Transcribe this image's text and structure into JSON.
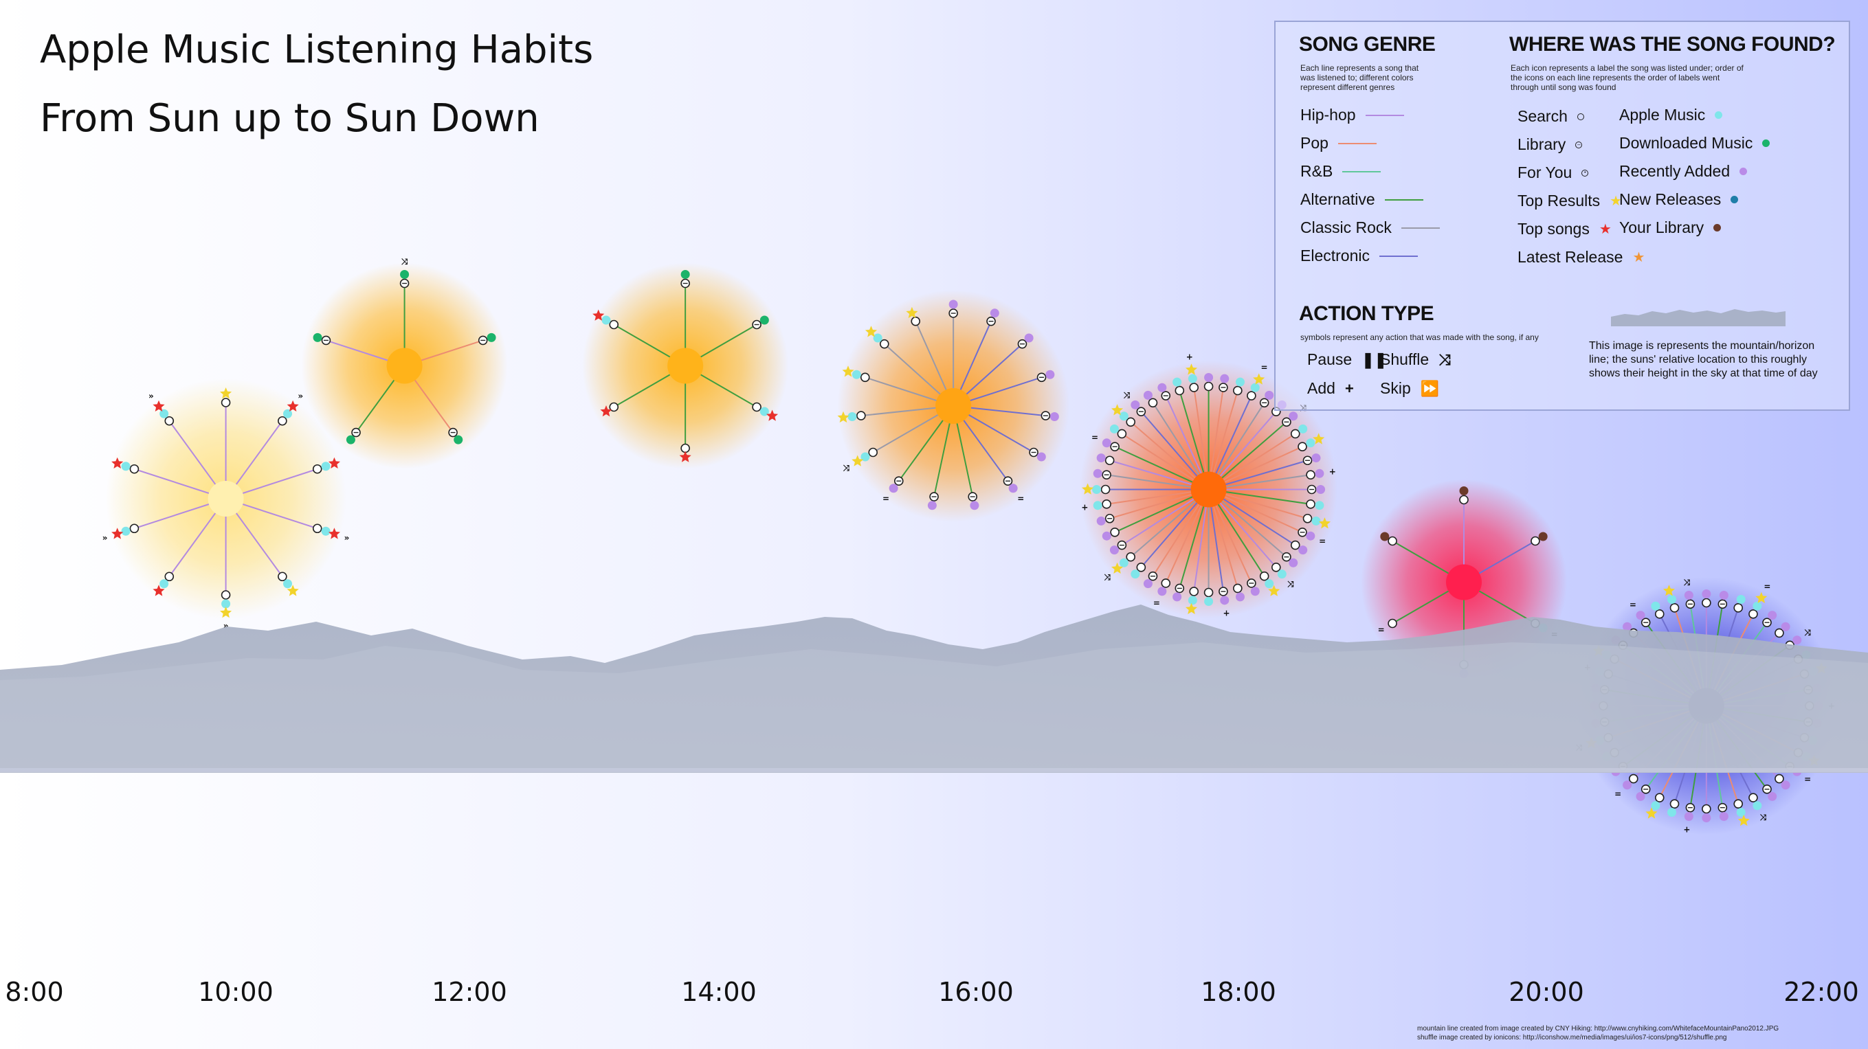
{
  "title": {
    "line1": "Apple Music Listening Habits",
    "line2": "From Sun up to Sun Down"
  },
  "legend": {
    "genre": {
      "heading": "SONG GENRE",
      "description": [
        "Each line represents a song that",
        "was listened to; different colors",
        "represent different genres"
      ],
      "items": [
        {
          "label": "Hip-hop",
          "color": "#b38ae0"
        },
        {
          "label": "Pop",
          "color": "#ec8c72"
        },
        {
          "label": "R&B",
          "color": "#5fc79a"
        },
        {
          "label": "Alternative",
          "color": "#3f9e3f"
        },
        {
          "label": "Classic Rock",
          "color": "#9a9aa8"
        },
        {
          "label": "Electronic",
          "color": "#6f6fd0"
        }
      ]
    },
    "found": {
      "heading": "WHERE WAS THE SONG FOUND?",
      "description": [
        "Each icon represents a label the song was listed under; order of",
        "the icons on each line represents the order of labels went",
        "through until song was found"
      ],
      "items": [
        {
          "label": "Search",
          "icon": "circle-outline-icon"
        },
        {
          "label": "Library",
          "icon": "circle-minus-icon"
        },
        {
          "label": "For You",
          "icon": "circle-dot-icon"
        },
        {
          "label": "Top Results",
          "icon": "star-icon",
          "color": "#f2d32c"
        },
        {
          "label": "Top songs",
          "icon": "star-icon",
          "color": "#e8302c"
        },
        {
          "label": "Latest Release",
          "icon": "star-icon",
          "color": "#f09436"
        },
        {
          "label": "Apple Music",
          "icon": "dot-icon",
          "color": "#7fe6ea"
        },
        {
          "label": "Downloaded Music",
          "icon": "dot-icon",
          "color": "#1bb36a"
        },
        {
          "label": "Recently Added",
          "icon": "dot-icon",
          "color": "#b98be8"
        },
        {
          "label": "New Releases",
          "icon": "dot-icon",
          "color": "#1f7ea8"
        },
        {
          "label": "Your Library",
          "icon": "dot-icon",
          "color": "#6b3a2a"
        }
      ]
    },
    "action": {
      "heading": "ACTION TYPE",
      "description": "symbols represent any action that was made with the song, if any",
      "items": [
        {
          "label": "Pause",
          "icon": "pause-icon"
        },
        {
          "label": "Shuffle",
          "icon": "shuffle-icon"
        },
        {
          "label": "Add",
          "icon": "plus-icon"
        },
        {
          "label": "Skip",
          "icon": "skip-icon"
        }
      ]
    },
    "mountain_note": "This image is represents the mountain/horizon line; the suns' relative location to this roughly shows their height in the sky at that time of day"
  },
  "chart_data": {
    "type": "radial-timeline",
    "x_ticks": [
      "8:00",
      "10:00",
      "12:00",
      "14:00",
      "16:00",
      "18:00",
      "20:00",
      "22:00"
    ],
    "xlim": [
      8,
      22
    ],
    "suns": [
      {
        "hour": 9.5,
        "height": 0.52,
        "color": "#fff0b0",
        "glow": "#ffe07a",
        "songs": [
          {
            "genre": "Hip-hop",
            "found": [
              "Search",
              "Top Results"
            ]
          },
          {
            "genre": "Hip-hop",
            "found": [
              "Search",
              "Apple Music",
              "Top songs"
            ],
            "action": "Skip"
          },
          {
            "genre": "Hip-hop",
            "found": [
              "Search",
              "Apple Music",
              "Top songs"
            ]
          },
          {
            "genre": "Hip-hop",
            "found": [
              "Search",
              "Apple Music",
              "Top songs"
            ],
            "action": "Skip"
          },
          {
            "genre": "Hip-hop",
            "found": [
              "Search",
              "Apple Music",
              "Top Results"
            ]
          },
          {
            "genre": "Hip-hop",
            "found": [
              "Search",
              "Apple Music",
              "Top Results"
            ],
            "action": "Skip"
          },
          {
            "genre": "Hip-hop",
            "found": [
              "Search",
              "Apple Music",
              "Top songs"
            ]
          },
          {
            "genre": "Hip-hop",
            "found": [
              "Search",
              "Apple Music",
              "Top songs"
            ],
            "action": "Skip"
          },
          {
            "genre": "Hip-hop",
            "found": [
              "Search",
              "Apple Music",
              "Top songs"
            ]
          },
          {
            "genre": "Hip-hop",
            "found": [
              "Search",
              "Apple Music",
              "Top songs"
            ],
            "action": "Skip"
          }
        ]
      },
      {
        "hour": 10.9,
        "height": 0.95,
        "color": "#ffb31a",
        "glow": "#ffb31a",
        "songs": [
          {
            "genre": "Alternative",
            "found": [
              "Library",
              "Downloaded Music"
            ],
            "action": "Shuffle"
          },
          {
            "genre": "Pop",
            "found": [
              "Library",
              "Downloaded Music"
            ]
          },
          {
            "genre": "Pop",
            "found": [
              "Library",
              "Downloaded Music"
            ]
          },
          {
            "genre": "Alternative",
            "found": [
              "Library",
              "Downloaded Music"
            ]
          },
          {
            "genre": "Hip-hop",
            "found": [
              "Library",
              "Downloaded Music"
            ]
          }
        ]
      },
      {
        "hour": 13.1,
        "height": 0.95,
        "color": "#ffb31a",
        "glow": "#ffb31a",
        "songs": [
          {
            "genre": "Alternative",
            "found": [
              "Library",
              "Downloaded Music"
            ]
          },
          {
            "genre": "Alternative",
            "found": [
              "Library",
              "Downloaded Music"
            ]
          },
          {
            "genre": "Alternative",
            "found": [
              "Search",
              "Apple Music",
              "Top songs"
            ]
          },
          {
            "genre": "Alternative",
            "found": [
              "Search",
              "Top songs"
            ]
          },
          {
            "genre": "Alternative",
            "found": [
              "Search",
              "Top songs"
            ]
          },
          {
            "genre": "Alternative",
            "found": [
              "Search",
              "Apple Music",
              "Top songs"
            ]
          }
        ]
      },
      {
        "hour": 15.2,
        "height": 0.82,
        "color": "#ffa414",
        "glow": "#ff9a1a",
        "songs": [
          {
            "genre": "Classic Rock",
            "found": [
              "Library",
              "Recently Added"
            ]
          },
          {
            "genre": "Electronic",
            "found": [
              "Library",
              "Recently Added"
            ]
          },
          {
            "genre": "Electronic",
            "found": [
              "Library",
              "Recently Added"
            ]
          },
          {
            "genre": "Electronic",
            "found": [
              "Library",
              "Recently Added"
            ]
          },
          {
            "genre": "Electronic",
            "found": [
              "Library",
              "Recently Added"
            ]
          },
          {
            "genre": "Electronic",
            "found": [
              "Library",
              "Recently Added"
            ]
          },
          {
            "genre": "Electronic",
            "found": [
              "Library",
              "Recently Added"
            ],
            "action": "Pause"
          },
          {
            "genre": "Alternative",
            "found": [
              "Library",
              "Recently Added"
            ]
          },
          {
            "genre": "Alternative",
            "found": [
              "Library",
              "Recently Added"
            ]
          },
          {
            "genre": "Alternative",
            "found": [
              "Library",
              "Recently Added"
            ],
            "action": "Pause"
          },
          {
            "genre": "Classic Rock",
            "found": [
              "Search",
              "Apple Music",
              "Top Results"
            ],
            "action": "Shuffle"
          },
          {
            "genre": "Classic Rock",
            "found": [
              "Search",
              "Apple Music",
              "Top Results"
            ]
          },
          {
            "genre": "Classic Rock",
            "found": [
              "Search",
              "Apple Music",
              "Top Results"
            ]
          },
          {
            "genre": "Classic Rock",
            "found": [
              "Search",
              "Apple Music",
              "Top Results"
            ]
          },
          {
            "genre": "Classic Rock",
            "found": [
              "Search",
              "Top Results"
            ]
          }
        ]
      },
      {
        "hour": 17.2,
        "height": 0.55,
        "color": "#ff6a0a",
        "glow": "#ff6a2a",
        "songs_count": 44,
        "genres": [
          "Alternative",
          "Pop",
          "Pop",
          "Electronic",
          "Classic Rock",
          "Hip-hop"
        ]
      },
      {
        "hour": 19.2,
        "height": 0.25,
        "color": "#ff1f4e",
        "glow": "#ff2050",
        "songs": [
          {
            "genre": "Hip-hop",
            "found": [
              "Search",
              "Your Library"
            ]
          },
          {
            "genre": "Electronic",
            "found": [
              "Search",
              "Your Library"
            ]
          },
          {
            "genre": "Alternative",
            "found": [
              "Search",
              "Apple Music"
            ],
            "action": "Pause"
          },
          {
            "genre": "Alternative",
            "found": [
              "Search",
              "Recently Added"
            ]
          },
          {
            "genre": "Alternative",
            "found": [
              "Search"
            ],
            "action": "Pause"
          },
          {
            "genre": "Alternative",
            "found": [
              "Search",
              "Your Library"
            ]
          }
        ]
      },
      {
        "hour": 21.1,
        "height": -0.15,
        "color": "#0a0a7a",
        "glow": "#3a3ad8",
        "songs_count": 40,
        "genres": [
          "Hip-hop",
          "Alternative",
          "Electronic",
          "Pop",
          "R&B"
        ]
      }
    ]
  },
  "credits": [
    "mountain line created from image created by CNY Hiking: http://www.cnyhiking.com/WhitefaceMountainPano2012.JPG",
    "shuffle image created by ionicons: http://iconshow.me/media/images/ui/ios7-icons/png/512/shuffle.png"
  ]
}
